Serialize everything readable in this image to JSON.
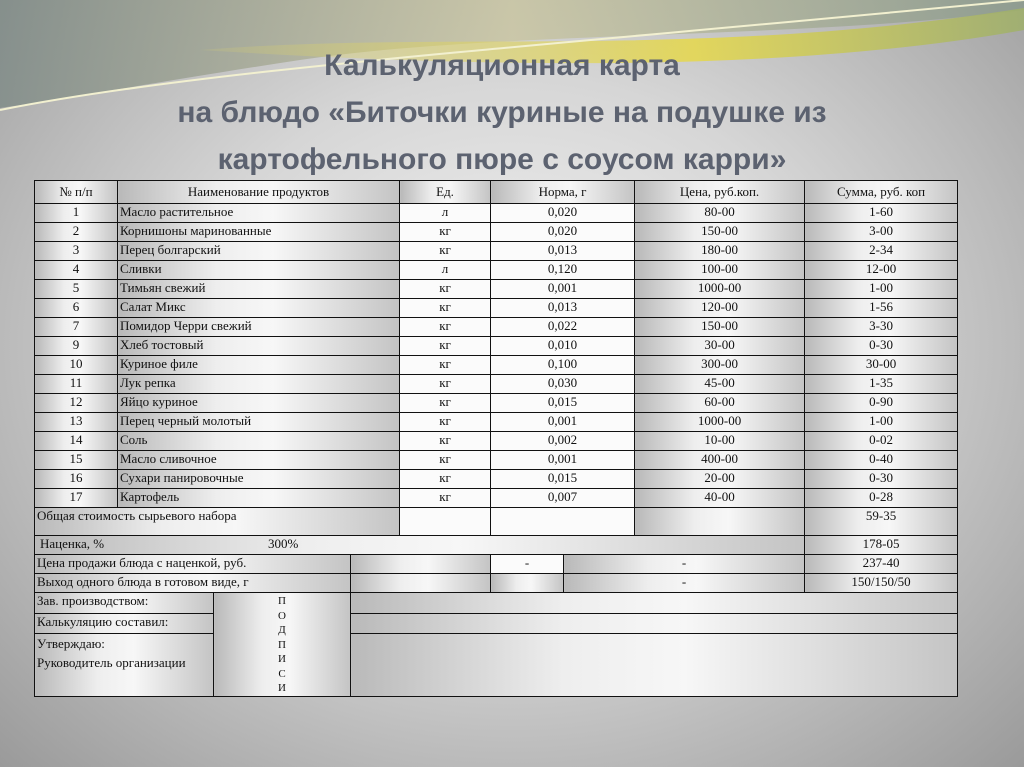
{
  "title": {
    "line1": "Калькуляционная карта",
    "line2": "на блюдо «Биточки куриные на подушке из",
    "line3": "картофельного пюре  с соусом карри»"
  },
  "table": {
    "headers": {
      "num": "№ п/п",
      "name": "Наименование продуктов",
      "unit": "Ед.",
      "norm": "Норма, г",
      "price": "Цена, руб.коп.",
      "sum": "Сумма, руб. коп"
    },
    "rows": [
      {
        "num": "1",
        "name": "Масло растительное",
        "unit": "л",
        "norm": "0,020",
        "price": "80-00",
        "sum": "1-60"
      },
      {
        "num": "2",
        "name": "Корнишоны маринованные",
        "unit": "кг",
        "norm": "0,020",
        "price": "150-00",
        "sum": "3-00"
      },
      {
        "num": "3",
        "name": "Перец болгарский",
        "unit": "кг",
        "norm": "0,013",
        "price": "180-00",
        "sum": "2-34"
      },
      {
        "num": "4",
        "name": "Сливки",
        "unit": "л",
        "norm": "0,120",
        "price": "100-00",
        "sum": "12-00"
      },
      {
        "num": "5",
        "name": "Тимьян свежий",
        "unit": "кг",
        "norm": "0,001",
        "price": "1000-00",
        "sum": "1-00"
      },
      {
        "num": "6",
        "name": "Салат Микс",
        "unit": "кг",
        "norm": "0,013",
        "price": "120-00",
        "sum": "1-56"
      },
      {
        "num": "7",
        "name": "Помидор Черри свежий",
        "unit": "кг",
        "norm": "0,022",
        "price": "150-00",
        "sum": "3-30"
      },
      {
        "num": "9",
        "name": "Хлеб тостовый",
        "unit": "кг",
        "norm": "0,010",
        "price": "30-00",
        "sum": "0-30"
      },
      {
        "num": "10",
        "name": "Куриное филе",
        "unit": "кг",
        "norm": "0,100",
        "price": "300-00",
        "sum": "30-00"
      },
      {
        "num": "11",
        "name": "Лук репка",
        "unit": "кг",
        "norm": "0,030",
        "price": "45-00",
        "sum": "1-35"
      },
      {
        "num": "12",
        "name": "Яйцо куриное",
        "unit": "кг",
        "norm": "0,015",
        "price": "60-00",
        "sum": "0-90"
      },
      {
        "num": "13",
        "name": "Перец черный молотый",
        "unit": "кг",
        "norm": "0,001",
        "price": "1000-00",
        "sum": "1-00"
      },
      {
        "num": "14",
        "name": "Соль",
        "unit": "кг",
        "norm": "0,002",
        "price": "10-00",
        "sum": "0-02"
      },
      {
        "num": "15",
        "name": "Масло сливочное",
        "unit": "кг",
        "norm": "0,001",
        "price": "400-00",
        "sum": "0-40"
      },
      {
        "num": "16",
        "name": "Сухари панировочные",
        "unit": "кг",
        "norm": "0,015",
        "price": "20-00",
        "sum": "0-30"
      },
      {
        "num": "17",
        "name": "Картофель",
        "unit": "кг",
        "norm": "0,007",
        "price": "40-00",
        "sum": "0-28"
      }
    ],
    "total": {
      "label": "Общая стоимость сырьевого набора",
      "value": "59-35"
    },
    "markup": {
      "label": "Наценка, %",
      "percent": "300%",
      "value": "178-05"
    },
    "sale_price": {
      "label": "Цена продажи блюда с наценкой, руб.",
      "dash1": "-",
      "dash2": "-",
      "value": "237-40"
    },
    "yield": {
      "label": "Выход одного блюда в готовом виде, г",
      "dash2": "-",
      "value": "150/150/50"
    },
    "signatures": {
      "head": "Зав. производством:",
      "compiled": "Калькуляцию составил:",
      "approve": "Утверждаю:",
      "director": "Руководитель организации",
      "vertical": [
        "П",
        "О",
        "Д",
        "П",
        "И",
        "С",
        "И"
      ]
    }
  }
}
